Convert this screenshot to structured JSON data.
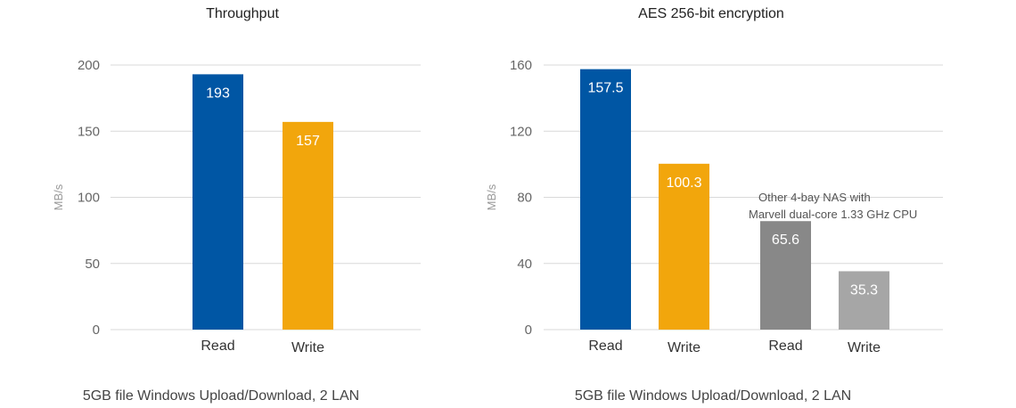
{
  "chart_data": [
    {
      "type": "bar",
      "title": "Throughput",
      "ylabel": "MB/s",
      "ylim": [
        0,
        200
      ],
      "yticks": [
        0,
        50,
        100,
        150,
        200
      ],
      "categories": [
        "Read",
        "Write"
      ],
      "values": [
        193,
        157
      ],
      "colors": [
        "#0056a4",
        "#f2a60c"
      ],
      "grid": true,
      "caption": "5GB file Windows Upload/Download, 2 LAN"
    },
    {
      "type": "bar",
      "title": "AES 256-bit encryption",
      "ylabel": "MB/s",
      "ylim": [
        0,
        160
      ],
      "yticks": [
        0,
        40,
        80,
        120,
        160
      ],
      "categories": [
        "Read",
        "Write",
        "Read",
        "Write"
      ],
      "values": [
        157.5,
        100.3,
        65.6,
        35.3
      ],
      "colors": [
        "#0056a4",
        "#f2a60c",
        "#888888",
        "#a6a6a6"
      ],
      "grid": true,
      "annotation": [
        "Other 4-bay NAS with",
        "Marvell dual-core 1.33 GHz CPU"
      ],
      "caption": "5GB file Windows Upload/Download, 2 LAN"
    }
  ]
}
